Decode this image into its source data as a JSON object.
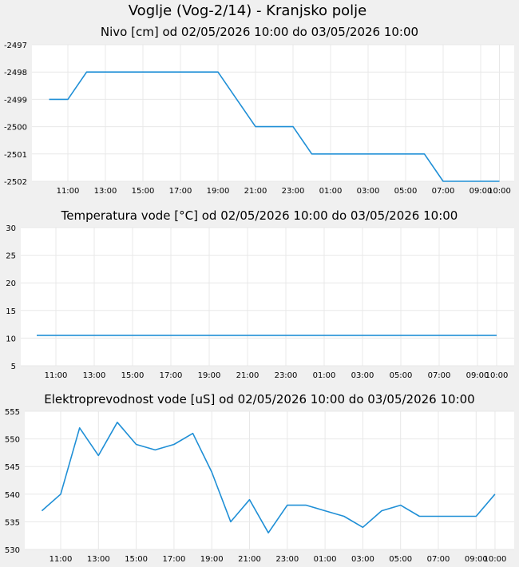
{
  "page": {
    "title": "Voglje (Vog-2/14) - Kranjsko polje"
  },
  "colors": {
    "line": "#1f8fd6",
    "plot_bg": "#ffffff",
    "grid": "#e8e8e8",
    "page_bg": "#f0f0f0"
  },
  "chart_data": [
    {
      "type": "line",
      "title": "Nivo [cm] od 02/05/2026 10:00 do 03/05/2026 10:00",
      "xlabel": "",
      "ylabel": "",
      "x_tick_labels": [
        "11:00",
        "13:00",
        "15:00",
        "17:00",
        "19:00",
        "21:00",
        "23:00",
        "01:00",
        "03:00",
        "05:00",
        "07:00",
        "09:00",
        "10:00"
      ],
      "y_ticks": [
        -2497,
        -2498,
        -2499,
        -2500,
        -2501,
        -2502
      ],
      "ylim": [
        -2502,
        -2497
      ],
      "grid": true,
      "series": [
        {
          "x": [
            10,
            11,
            12,
            13,
            14,
            15,
            16,
            17,
            18,
            19,
            20,
            21,
            22,
            23,
            24,
            25,
            26,
            27,
            28,
            29,
            30,
            31,
            32,
            33,
            34
          ],
          "y": [
            -2499,
            -2499,
            -2498,
            -2498,
            -2498,
            -2498,
            -2498,
            -2498,
            -2498,
            -2498,
            -2499,
            -2500,
            -2500,
            -2500,
            -2501,
            -2501,
            -2501,
            -2501,
            -2501,
            -2501,
            -2501,
            -2502,
            -2502,
            -2502,
            -2502
          ]
        }
      ]
    },
    {
      "type": "line",
      "title": "Temperatura vode [°C] od 02/05/2026 10:00 do 03/05/2026 10:00",
      "xlabel": "",
      "ylabel": "",
      "x_tick_labels": [
        "11:00",
        "13:00",
        "15:00",
        "17:00",
        "19:00",
        "21:00",
        "23:00",
        "01:00",
        "03:00",
        "05:00",
        "07:00",
        "09:00",
        "10:00"
      ],
      "y_ticks": [
        30,
        25,
        20,
        15,
        10,
        5
      ],
      "ylim": [
        5,
        30
      ],
      "grid": true,
      "series": [
        {
          "x": [
            10,
            34
          ],
          "y": [
            10.5,
            10.5
          ]
        }
      ]
    },
    {
      "type": "line",
      "title": "Elektroprevodnost vode [uS] od 02/05/2026 10:00 do 03/05/2026 10:00",
      "xlabel": "",
      "ylabel": "",
      "x_tick_labels": [
        "11:00",
        "13:00",
        "15:00",
        "17:00",
        "19:00",
        "21:00",
        "23:00",
        "01:00",
        "03:00",
        "05:00",
        "07:00",
        "09:00",
        "10:00"
      ],
      "y_ticks": [
        555,
        550,
        545,
        540,
        535,
        530
      ],
      "ylim": [
        530,
        555
      ],
      "grid": true,
      "series": [
        {
          "x": [
            10,
            11,
            12,
            13,
            14,
            15,
            16,
            17,
            18,
            19,
            20,
            21,
            22,
            23,
            24,
            25,
            26,
            27,
            28,
            29,
            30,
            31,
            32,
            33,
            34
          ],
          "y": [
            537,
            540,
            552,
            547,
            553,
            549,
            548,
            549,
            551,
            544,
            535,
            539,
            533,
            538,
            538,
            537,
            536,
            534,
            537,
            538,
            536,
            536,
            536,
            536,
            540
          ]
        }
      ]
    }
  ]
}
